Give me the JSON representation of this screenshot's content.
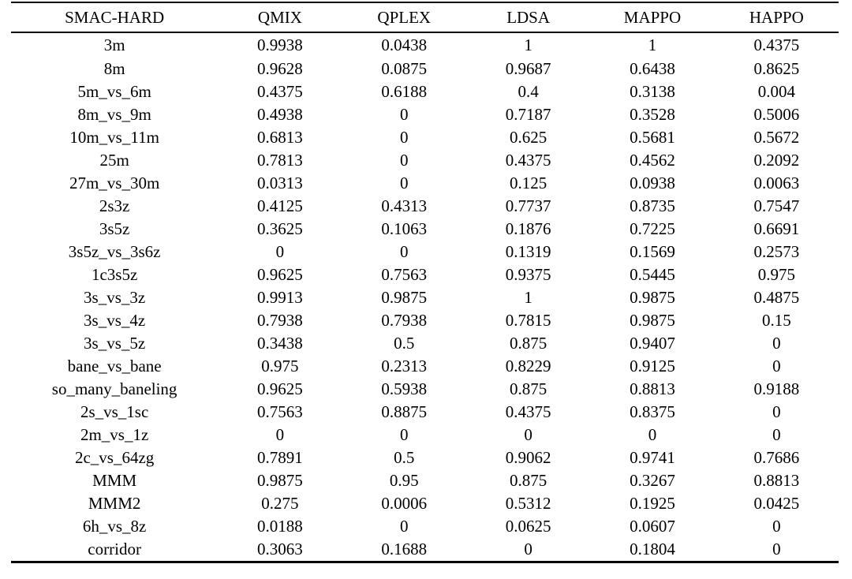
{
  "table": {
    "columns": [
      "SMAC-HARD",
      "QMIX",
      "QPLEX",
      "LDSA",
      "MAPPO",
      "HAPPO"
    ],
    "rows": [
      {
        "map": "3m",
        "values": [
          "0.9938",
          "0.0438",
          "1",
          "1",
          "0.4375"
        ]
      },
      {
        "map": "8m",
        "values": [
          "0.9628",
          "0.0875",
          "0.9687",
          "0.6438",
          "0.8625"
        ]
      },
      {
        "map": "5m_vs_6m",
        "values": [
          "0.4375",
          "0.6188",
          "0.4",
          "0.3138",
          "0.004"
        ]
      },
      {
        "map": "8m_vs_9m",
        "values": [
          "0.4938",
          "0",
          "0.7187",
          "0.3528",
          "0.5006"
        ]
      },
      {
        "map": "10m_vs_11m",
        "values": [
          "0.6813",
          "0",
          "0.625",
          "0.5681",
          "0.5672"
        ]
      },
      {
        "map": "25m",
        "values": [
          "0.7813",
          "0",
          "0.4375",
          "0.4562",
          "0.2092"
        ]
      },
      {
        "map": "27m_vs_30m",
        "values": [
          "0.0313",
          "0",
          "0.125",
          "0.0938",
          "0.0063"
        ]
      },
      {
        "map": "2s3z",
        "values": [
          "0.4125",
          "0.4313",
          "0.7737",
          "0.8735",
          "0.7547"
        ]
      },
      {
        "map": "3s5z",
        "values": [
          "0.3625",
          "0.1063",
          "0.1876",
          "0.7225",
          "0.6691"
        ]
      },
      {
        "map": "3s5z_vs_3s6z",
        "values": [
          "0",
          "0",
          "0.1319",
          "0.1569",
          "0.2573"
        ]
      },
      {
        "map": "1c3s5z",
        "values": [
          "0.9625",
          "0.7563",
          "0.9375",
          "0.5445",
          "0.975"
        ]
      },
      {
        "map": "3s_vs_3z",
        "values": [
          "0.9913",
          "0.9875",
          "1",
          "0.9875",
          "0.4875"
        ]
      },
      {
        "map": "3s_vs_4z",
        "values": [
          "0.7938",
          "0.7938",
          "0.7815",
          "0.9875",
          "0.15"
        ]
      },
      {
        "map": "3s_vs_5z",
        "values": [
          "0.3438",
          "0.5",
          "0.875",
          "0.9407",
          "0"
        ]
      },
      {
        "map": "bane_vs_bane",
        "values": [
          "0.975",
          "0.2313",
          "0.8229",
          "0.9125",
          "0"
        ]
      },
      {
        "map": "so_many_baneling",
        "values": [
          "0.9625",
          "0.5938",
          "0.875",
          "0.8813",
          "0.9188"
        ]
      },
      {
        "map": "2s_vs_1sc",
        "values": [
          "0.7563",
          "0.8875",
          "0.4375",
          "0.8375",
          "0"
        ]
      },
      {
        "map": "2m_vs_1z",
        "values": [
          "0",
          "0",
          "0",
          "0",
          "0"
        ]
      },
      {
        "map": "2c_vs_64zg",
        "values": [
          "0.7891",
          "0.5",
          "0.9062",
          "0.9741",
          "0.7686"
        ]
      },
      {
        "map": "MMM",
        "values": [
          "0.9875",
          "0.95",
          "0.875",
          "0.3267",
          "0.8813"
        ]
      },
      {
        "map": "MMM2",
        "values": [
          "0.275",
          "0.0006",
          "0.5312",
          "0.1925",
          "0.0425"
        ]
      },
      {
        "map": "6h_vs_8z",
        "values": [
          "0.0188",
          "0",
          "0.0625",
          "0.0607",
          "0"
        ]
      },
      {
        "map": "corridor",
        "values": [
          "0.3063",
          "0.1688",
          "0",
          "0.1804",
          "0"
        ]
      }
    ]
  }
}
